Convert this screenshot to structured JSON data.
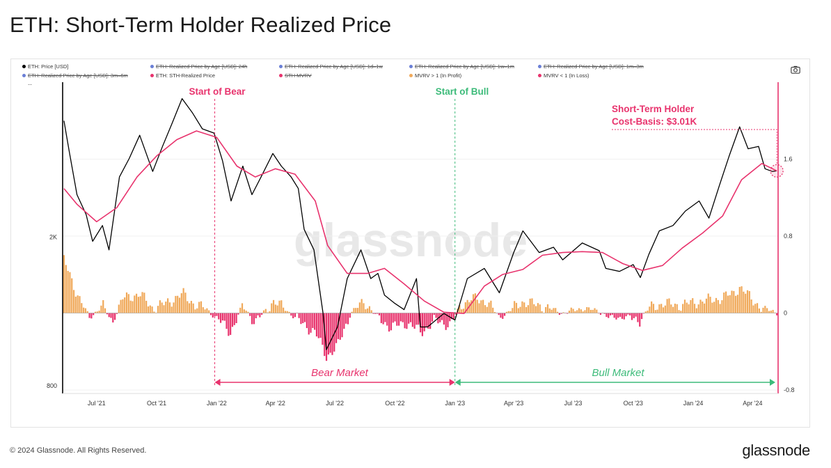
{
  "page": {
    "title": "ETH: Short-Term Holder Realized Price",
    "copyright": "© 2024 Glassnode. All Rights Reserved.",
    "brand": "glassnode",
    "watermark": "glassnode",
    "camera_icon": "camera-icon"
  },
  "legend": [
    {
      "label": "ETH: Price [USD]",
      "color": "#000000",
      "active": true
    },
    {
      "label": "ETH: Realized Price by Age [USD]: 24h",
      "color": "#6a7fd6",
      "active": false
    },
    {
      "label": "ETH: Realized Price by Age [USD]: 1d–1w",
      "color": "#6a7fd6",
      "active": false
    },
    {
      "label": "ETH: Realized Price by Age [USD]: 1w–1m",
      "color": "#6a7fd6",
      "active": false
    },
    {
      "label": "ETH: Realized Price by Age [USD]: 1m–3m",
      "color": "#6a7fd6",
      "active": false
    },
    {
      "label": "ETH: Realized Price by Age [USD]: 3m–6m",
      "color": "#6a7fd6",
      "active": false
    },
    {
      "label": "ETH: STH-Realized Price",
      "color": "#e8336d",
      "active": true
    },
    {
      "label": "STH MVRV",
      "color": "#e8336d",
      "active": false
    },
    {
      "label": "MVRV > 1 (In Profit)",
      "color": "#f0a95a",
      "active": true
    },
    {
      "label": "MVRV < 1 (In Loss)",
      "color": "#e8336d",
      "active": true
    }
  ],
  "annotations": {
    "start_bear": "Start of Bear",
    "start_bull": "Start of Bull",
    "cost_basis_line1": "Short-Term Holder",
    "cost_basis_line2": "Cost-Basis: $3.01K",
    "bear_market": "Bear Market",
    "bull_market": "Bull Market"
  },
  "colors": {
    "price": "#000000",
    "sth": "#e8336d",
    "profit": "#f0a95a",
    "loss": "#e8336d",
    "bear": "#e8336d",
    "bull": "#3dbb7a"
  },
  "chart_data": {
    "type": "line",
    "title": "ETH: Short-Term Holder Realized Price",
    "x_ticks": [
      "Jul '21",
      "Oct '21",
      "Jan '22",
      "Apr '22",
      "Jul '22",
      "Oct '22",
      "Jan '23",
      "Apr '23",
      "Jul '23",
      "Oct '23",
      "Jan '24",
      "Apr '24"
    ],
    "x_tick_dates": [
      "2021-07-01",
      "2021-10-01",
      "2022-01-01",
      "2022-04-01",
      "2022-07-01",
      "2022-10-01",
      "2023-01-01",
      "2023-04-01",
      "2023-07-01",
      "2023-10-01",
      "2024-01-01",
      "2024-04-01"
    ],
    "x_range": [
      "2021-05-10",
      "2024-05-10"
    ],
    "y_left": {
      "scale": "log",
      "ticks": [
        "2K",
        "800"
      ],
      "tick_values": [
        2000,
        800
      ],
      "range": [
        780,
        5200
      ]
    },
    "y_right": {
      "ticks": [
        "1.6",
        "0.8",
        "0",
        "-0.8"
      ],
      "tick_values": [
        1.6,
        0.8,
        0,
        -0.8
      ],
      "range": [
        -0.8,
        2.4
      ]
    },
    "bear_start_date": "2021-12-29",
    "bull_start_date": "2023-01-01",
    "series": [
      {
        "name": "ETH: Price [USD]",
        "axis": "left",
        "dates": [
          "2021-05-12",
          "2021-05-20",
          "2021-06-01",
          "2021-06-15",
          "2021-06-25",
          "2021-07-10",
          "2021-07-20",
          "2021-08-05",
          "2021-08-20",
          "2021-09-05",
          "2021-09-25",
          "2021-10-10",
          "2021-10-25",
          "2021-11-09",
          "2021-11-25",
          "2021-12-10",
          "2021-12-28",
          "2022-01-10",
          "2022-01-23",
          "2022-02-10",
          "2022-02-24",
          "2022-03-10",
          "2022-03-28",
          "2022-04-10",
          "2022-04-25",
          "2022-05-06",
          "2022-05-15",
          "2022-05-30",
          "2022-06-13",
          "2022-06-18",
          "2022-07-05",
          "2022-07-20",
          "2022-08-10",
          "2022-08-25",
          "2022-09-05",
          "2022-09-15",
          "2022-10-01",
          "2022-10-15",
          "2022-11-03",
          "2022-11-09",
          "2022-11-20",
          "2022-12-15",
          "2023-01-01",
          "2023-01-20",
          "2023-02-15",
          "2023-03-10",
          "2023-04-01",
          "2023-04-15",
          "2023-05-10",
          "2023-06-01",
          "2023-06-15",
          "2023-07-15",
          "2023-08-10",
          "2023-08-20",
          "2023-09-10",
          "2023-10-01",
          "2023-10-12",
          "2023-10-25",
          "2023-11-10",
          "2023-12-01",
          "2023-12-20",
          "2024-01-10",
          "2024-01-25",
          "2024-02-10",
          "2024-02-25",
          "2024-03-12",
          "2024-03-25",
          "2024-04-10",
          "2024-04-20",
          "2024-05-01",
          "2024-05-08"
        ],
        "values": [
          4100,
          3400,
          2600,
          2300,
          1950,
          2150,
          1850,
          2900,
          3250,
          3750,
          3000,
          3500,
          4050,
          4700,
          4300,
          3900,
          3800,
          3200,
          2500,
          3100,
          2600,
          2900,
          3350,
          3100,
          2900,
          2700,
          2100,
          1850,
          1250,
          1000,
          1150,
          1550,
          1850,
          1550,
          1600,
          1400,
          1330,
          1280,
          1550,
          1150,
          1150,
          1250,
          1200,
          1550,
          1650,
          1420,
          1820,
          2080,
          1820,
          1880,
          1740,
          1930,
          1840,
          1650,
          1620,
          1690,
          1560,
          1800,
          2080,
          2150,
          2350,
          2500,
          2250,
          2750,
          3300,
          3950,
          3450,
          3500,
          3050,
          3000,
          3010
        ]
      },
      {
        "name": "ETH: STH-Realized Price",
        "axis": "left",
        "dates": [
          "2021-05-12",
          "2021-06-01",
          "2021-07-01",
          "2021-08-01",
          "2021-09-01",
          "2021-10-01",
          "2021-11-01",
          "2021-12-01",
          "2022-01-01",
          "2022-02-01",
          "2022-03-01",
          "2022-04-01",
          "2022-05-01",
          "2022-06-01",
          "2022-06-20",
          "2022-07-20",
          "2022-08-20",
          "2022-09-15",
          "2022-10-15",
          "2022-11-15",
          "2022-12-15",
          "2023-01-15",
          "2023-02-15",
          "2023-03-15",
          "2023-04-15",
          "2023-05-15",
          "2023-06-15",
          "2023-07-15",
          "2023-08-15",
          "2023-09-15",
          "2023-10-15",
          "2023-11-15",
          "2023-12-15",
          "2024-01-15",
          "2024-02-15",
          "2024-03-15",
          "2024-04-15",
          "2024-05-08"
        ],
        "values": [
          2700,
          2450,
          2200,
          2400,
          2900,
          3300,
          3650,
          3850,
          3700,
          3100,
          2900,
          3050,
          2950,
          2500,
          1900,
          1600,
          1600,
          1650,
          1500,
          1350,
          1260,
          1250,
          1480,
          1590,
          1640,
          1790,
          1820,
          1830,
          1820,
          1700,
          1630,
          1680,
          1870,
          2050,
          2280,
          2850,
          3150,
          3010
        ]
      }
    ],
    "mvrv_profit_label": "MVRV > 1 (In Profit)",
    "mvrv_loss_label": "MVRV < 1 (In Loss)",
    "sth_mvrv_approx": {
      "dates": [
        "2021-05-12",
        "2021-06-01",
        "2021-06-20",
        "2021-07-10",
        "2021-07-25",
        "2021-08-10",
        "2021-09-05",
        "2021-09-25",
        "2021-10-15",
        "2021-11-10",
        "2021-11-30",
        "2021-12-15",
        "2022-01-01",
        "2022-01-22",
        "2022-02-10",
        "2022-03-01",
        "2022-03-28",
        "2022-04-15",
        "2022-05-10",
        "2022-06-01",
        "2022-06-18",
        "2022-07-05",
        "2022-07-25",
        "2022-08-15",
        "2022-09-05",
        "2022-09-25",
        "2022-10-20",
        "2022-11-10",
        "2022-12-01",
        "2022-12-25",
        "2023-01-10",
        "2023-01-25",
        "2023-02-20",
        "2023-03-10",
        "2023-04-15",
        "2023-05-20",
        "2023-06-15",
        "2023-07-15",
        "2023-08-10",
        "2023-08-25",
        "2023-09-20",
        "2023-10-10",
        "2023-10-25",
        "2023-11-15",
        "2023-12-10",
        "2024-01-10",
        "2024-02-10",
        "2024-03-01",
        "2024-03-12",
        "2024-03-30",
        "2024-04-15",
        "2024-05-08"
      ],
      "values": [
        0.55,
        0.2,
        -0.05,
        0.08,
        -0.1,
        0.15,
        0.2,
        0.05,
        0.1,
        0.2,
        0.08,
        0.05,
        -0.05,
        -0.2,
        0.08,
        -0.1,
        0.12,
        0.05,
        -0.1,
        -0.2,
        -0.45,
        -0.35,
        0.0,
        0.12,
        -0.05,
        -0.15,
        -0.1,
        -0.2,
        -0.08,
        -0.12,
        0.08,
        0.15,
        0.12,
        -0.05,
        0.12,
        0.06,
        0.0,
        0.05,
        0.02,
        -0.05,
        -0.04,
        -0.08,
        0.05,
        0.1,
        0.08,
        0.12,
        0.15,
        0.2,
        0.27,
        0.15,
        0.05,
        0.01
      ]
    }
  }
}
